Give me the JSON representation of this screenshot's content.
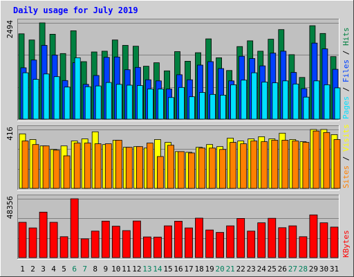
{
  "chart_data": {
    "type": "bar",
    "title": "Daily usage for July 2019",
    "categories": [
      "1",
      "2",
      "3",
      "4",
      "5",
      "6",
      "7",
      "8",
      "9",
      "10",
      "11",
      "12",
      "13",
      "14",
      "15",
      "16",
      "17",
      "18",
      "19",
      "20",
      "21",
      "22",
      "23",
      "24",
      "25",
      "26",
      "27",
      "28",
      "29",
      "30",
      "31"
    ],
    "weekend_days": [
      "6",
      "7",
      "13",
      "14",
      "20",
      "21",
      "27",
      "28"
    ],
    "panels": [
      {
        "id": "hits-panel",
        "max_label": "2494",
        "ylim": [
          0,
          2494
        ],
        "legend": [
          "Pages",
          "Files",
          "Hits"
        ],
        "series": [
          {
            "name": "Hits",
            "values": [
              2210,
              2050,
              2494,
              2200,
              1700,
              2290,
              1490,
              1740,
              1760,
              2050,
              1910,
              1890,
              1370,
              1460,
              1250,
              1750,
              1500,
              1720,
              2080,
              1590,
              1260,
              1880,
              2030,
              1760,
              2070,
              2320,
              1670,
              1080,
              2420,
              2220,
              1620
            ]
          },
          {
            "name": "Files",
            "values": [
              1330,
              1530,
              1910,
              1660,
              1000,
              1460,
              900,
              1130,
              1600,
              1610,
              1280,
              1340,
              1020,
              990,
              780,
              1150,
              1020,
              1400,
              1490,
              1310,
              990,
              1630,
              1570,
              1380,
              1710,
              1760,
              1210,
              790,
              1970,
              1820,
              1290
            ]
          },
          {
            "name": "Pages",
            "values": [
              1200,
              1030,
              1170,
              1100,
              830,
              1590,
              840,
              860,
              950,
              900,
              880,
              870,
              780,
              780,
              560,
              820,
              580,
              690,
              640,
              620,
              890,
              1010,
              1200,
              960,
              940,
              990,
              910,
              570,
              990,
              890,
              810
            ]
          }
        ]
      },
      {
        "id": "visits-panel",
        "max_label": "416",
        "ylim": [
          0,
          416
        ],
        "legend": [
          "Sites",
          "Visits"
        ],
        "series": [
          {
            "name": "Visits",
            "values": [
              385,
              345,
              300,
              275,
              300,
              335,
              350,
              400,
              310,
              340,
              290,
              295,
              285,
              345,
              325,
              260,
              255,
              290,
              310,
              295,
              355,
              335,
              350,
              365,
              350,
              390,
              345,
              330,
              416,
              416,
              380
            ]
          },
          {
            "name": "Sites",
            "values": [
              335,
              310,
              300,
              270,
              230,
              320,
              320,
              315,
              315,
              340,
              290,
              295,
              320,
              225,
              305,
              260,
              250,
              285,
              285,
              275,
              325,
              315,
              335,
              330,
              340,
              340,
              335,
              325,
              405,
              395,
              345
            ]
          }
        ]
      },
      {
        "id": "kbytes-panel",
        "max_label": "48356",
        "ylim": [
          0,
          48356
        ],
        "legend": [
          "KBytes"
        ],
        "series": [
          {
            "name": "KBytes",
            "values": [
              29000,
              24400,
              37400,
              29000,
              17200,
              48356,
              15400,
              21800,
              30000,
              25800,
              22200,
              30100,
              17000,
              16900,
              26100,
              29900,
              24400,
              32400,
              22700,
              20700,
              26100,
              32200,
              21800,
              28600,
              32300,
              24600,
              26100,
              17200,
              35100,
              28600,
              25100
            ]
          }
        ]
      }
    ],
    "colors": {
      "hits": "#008040",
      "files": "#0040ff",
      "pages": "#00e0ff",
      "visits": "#ffff00",
      "sites": "#ff8000",
      "kbytes": "#ff0000",
      "title": "#0000ff",
      "weekend": "#00805c",
      "weekday": "#000000",
      "panel_bg": "#c0c0c0",
      "frame_bg": "#d0d0d0",
      "slash": "#000000"
    }
  }
}
